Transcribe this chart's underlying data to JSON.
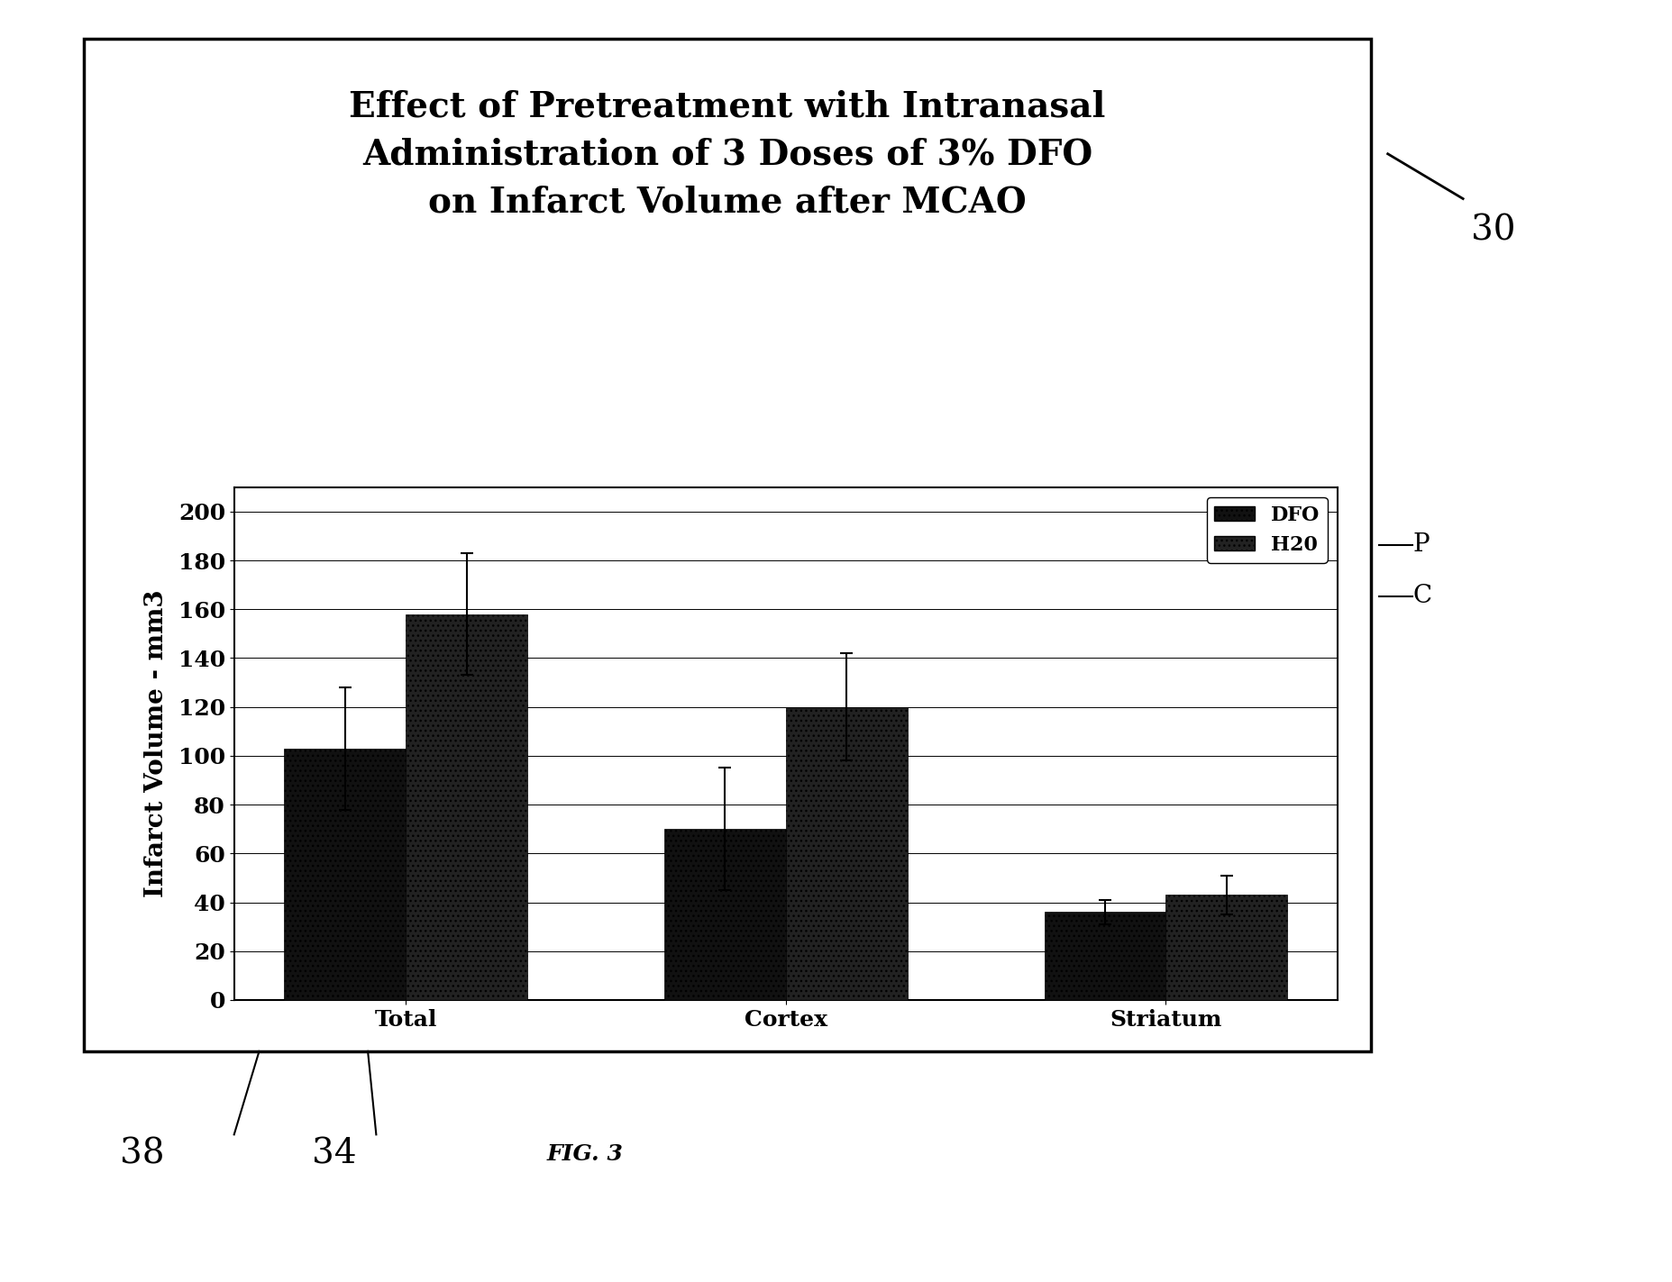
{
  "title_line1": "Effect of Pretreatment with Intranasal",
  "title_line2": "Administration of 3 Doses of 3% DFO",
  "title_line3": "on Infarct Volume after MCAO",
  "categories": [
    "Total",
    "Cortex",
    "Striatum"
  ],
  "dfo_values": [
    103,
    70,
    36
  ],
  "h2o_values": [
    158,
    120,
    43
  ],
  "dfo_errors": [
    25,
    25,
    5
  ],
  "h2o_errors": [
    25,
    22,
    8
  ],
  "ylabel": "Infarct Volume - mm3",
  "ylim": [
    0,
    210
  ],
  "yticks": [
    0,
    20,
    40,
    60,
    80,
    100,
    120,
    140,
    160,
    180,
    200
  ],
  "bar_width": 0.32,
  "dfo_color": "#111111",
  "h2o_color": "#222222",
  "legend_labels": [
    "DFO",
    "H20"
  ],
  "fig_caption": "FIG. 3",
  "background_color": "#ffffff",
  "title_fontsize": 28,
  "axis_fontsize": 20,
  "tick_fontsize": 18,
  "legend_fontsize": 16,
  "annotation_fontsize": 28
}
